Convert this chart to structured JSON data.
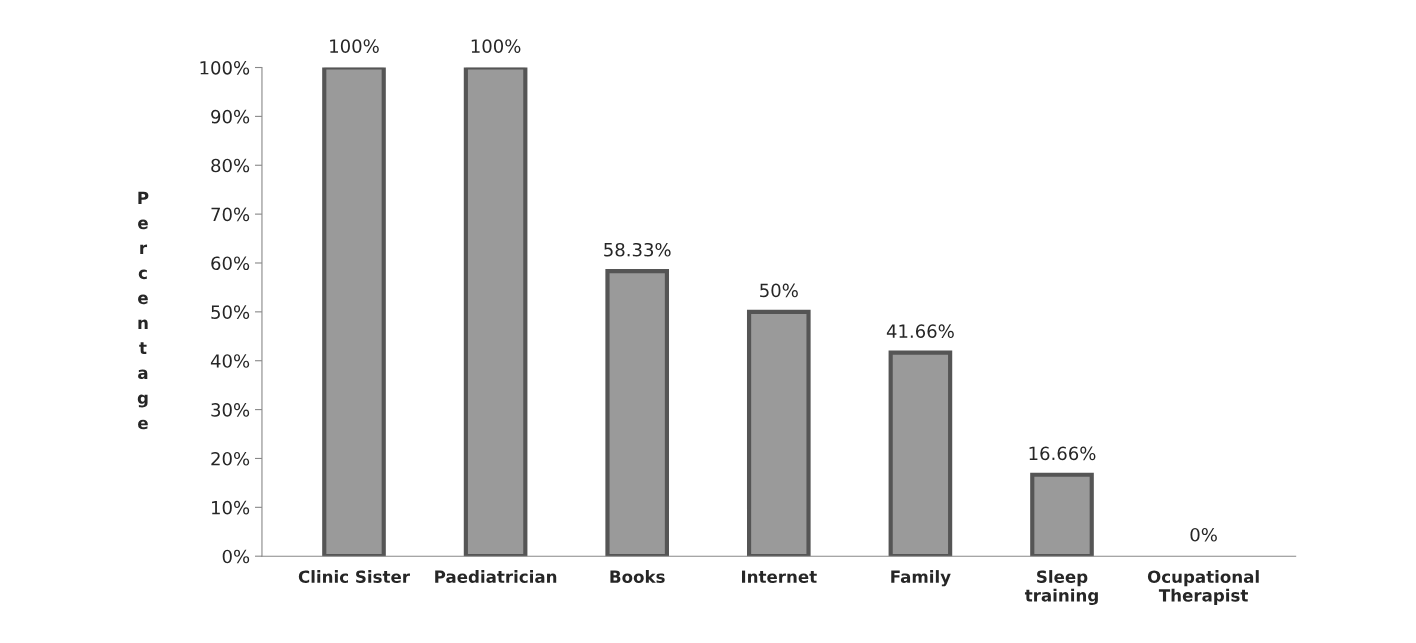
{
  "chart_data": {
    "type": "bar",
    "ylabel": "Percentage",
    "categories": [
      "Clinic Sister",
      "Paediatrician",
      "Books",
      "Internet",
      "Family",
      "Sleep\ntraining",
      "Ocupational\nTherapist"
    ],
    "values": [
      100,
      100,
      58.33,
      50,
      41.66,
      16.66,
      0
    ],
    "value_labels": [
      "100%",
      "100%",
      "58.33%",
      "50%",
      "41.66%",
      "16.66%",
      "0%"
    ],
    "color": "#9a9a9a",
    "ylim": [
      0,
      100
    ],
    "yticks": [
      {
        "value": 0,
        "label": "0%"
      },
      {
        "value": 10,
        "label": "10%"
      },
      {
        "value": 20,
        "label": "20%"
      },
      {
        "value": 30,
        "label": "30%"
      },
      {
        "value": 40,
        "label": "40%"
      },
      {
        "value": 50,
        "label": "50%"
      },
      {
        "value": 60,
        "label": "60%"
      },
      {
        "value": 70,
        "label": "70%"
      },
      {
        "value": 80,
        "label": "80%"
      },
      {
        "value": 90,
        "label": "90%"
      },
      {
        "value": 100,
        "label": "100%"
      }
    ],
    "grid": false
  }
}
